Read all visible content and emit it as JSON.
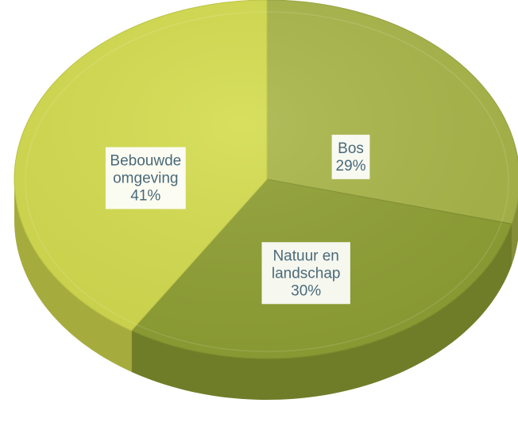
{
  "chart_data": {
    "type": "pie",
    "style": "3d",
    "title": "",
    "legend": "none",
    "slices": [
      {
        "category": "Bos",
        "value": 29,
        "label_lines": [
          "Bos",
          "29%"
        ],
        "color": "#a9b648"
      },
      {
        "category": "Natuur en landschap",
        "value": 30,
        "label_lines": [
          "Natuur en",
          "landschap",
          "30%"
        ],
        "color": "#8fa033"
      },
      {
        "category": "Bebouwde omgeving",
        "value": 41,
        "label_lines": [
          "Bebouwde",
          "omgeving",
          "41%"
        ],
        "color": "#d4dc4e"
      }
    ]
  }
}
